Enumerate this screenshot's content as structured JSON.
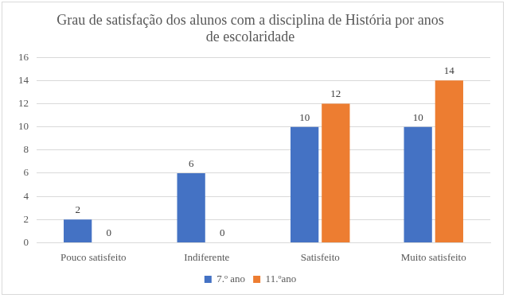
{
  "chart_data": {
    "type": "bar",
    "title": "Grau de satisfação dos alunos com a disciplina de História por anos de escolaridade",
    "categories": [
      "Pouco satisfeito",
      "Indiferente",
      "Satisfeito",
      "Muito satisfeito"
    ],
    "series": [
      {
        "name": "7.º ano",
        "color": "#4472c4",
        "values": [
          2,
          6,
          10,
          10
        ]
      },
      {
        "name": "11.ºano",
        "color": "#ed7d31",
        "values": [
          0,
          0,
          12,
          14
        ]
      }
    ],
    "ylim": [
      0,
      16
    ],
    "yticks": [
      0,
      2,
      4,
      6,
      8,
      10,
      12,
      14,
      16
    ],
    "grid": true,
    "legend": "bottom",
    "data_labels": true
  }
}
